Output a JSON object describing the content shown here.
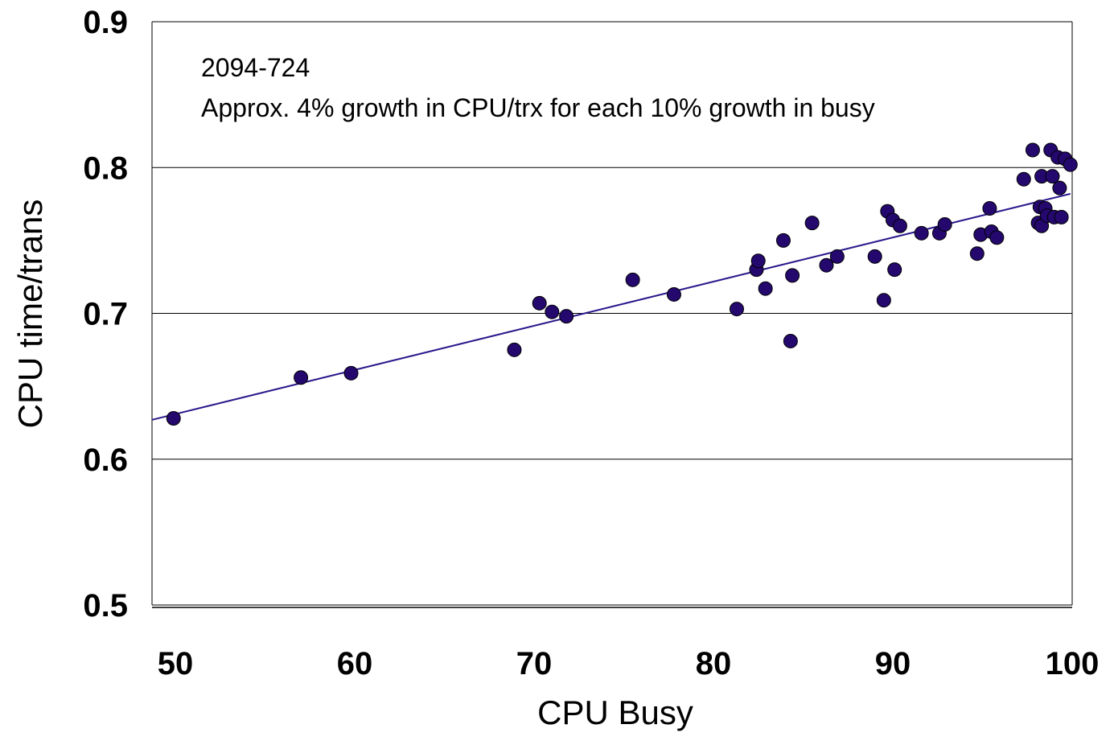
{
  "chart_data": {
    "type": "scatter",
    "xlabel": "CPU Busy",
    "ylabel": "CPU time/trans",
    "annotations": [
      "2094-724",
      "Approx. 4% growth in CPU/trx for each 10% growth in busy"
    ],
    "xlim": [
      48.7,
      100
    ],
    "ylim": [
      0.5,
      0.9
    ],
    "xticks": [
      50,
      60,
      70,
      80,
      90,
      100
    ],
    "yticks": [
      0.5,
      0.6,
      0.7,
      0.8,
      0.9
    ],
    "grid": true,
    "points": {
      "color": "#24086e",
      "x": [
        49.9,
        57.0,
        59.8,
        68.9,
        70.3,
        71.0,
        71.8,
        75.5,
        77.8,
        81.3,
        82.4,
        82.5,
        82.9,
        83.9,
        84.3,
        84.4,
        85.5,
        86.3,
        86.9,
        89.0,
        89.5,
        89.7,
        90.0,
        90.1,
        90.4,
        91.6,
        92.6,
        92.9,
        94.7,
        94.9,
        95.4,
        95.5,
        95.8,
        97.3,
        97.8,
        98.1,
        98.2,
        98.3,
        98.3,
        98.5,
        98.6,
        98.8,
        98.9,
        99.0,
        99.2,
        99.3,
        99.4,
        99.6,
        99.9
      ],
      "y": [
        0.628,
        0.656,
        0.659,
        0.675,
        0.707,
        0.701,
        0.698,
        0.723,
        0.713,
        0.703,
        0.73,
        0.736,
        0.717,
        0.75,
        0.681,
        0.726,
        0.762,
        0.733,
        0.739,
        0.739,
        0.709,
        0.77,
        0.764,
        0.73,
        0.76,
        0.755,
        0.755,
        0.761,
        0.741,
        0.754,
        0.772,
        0.756,
        0.752,
        0.792,
        0.812,
        0.762,
        0.773,
        0.76,
        0.794,
        0.772,
        0.767,
        0.812,
        0.794,
        0.766,
        0.807,
        0.786,
        0.766,
        0.806,
        0.802
      ]
    },
    "trend_line": {
      "color": "#2a1a8c",
      "x": [
        48.7,
        99.9
      ],
      "y": [
        0.627,
        0.782
      ]
    }
  }
}
